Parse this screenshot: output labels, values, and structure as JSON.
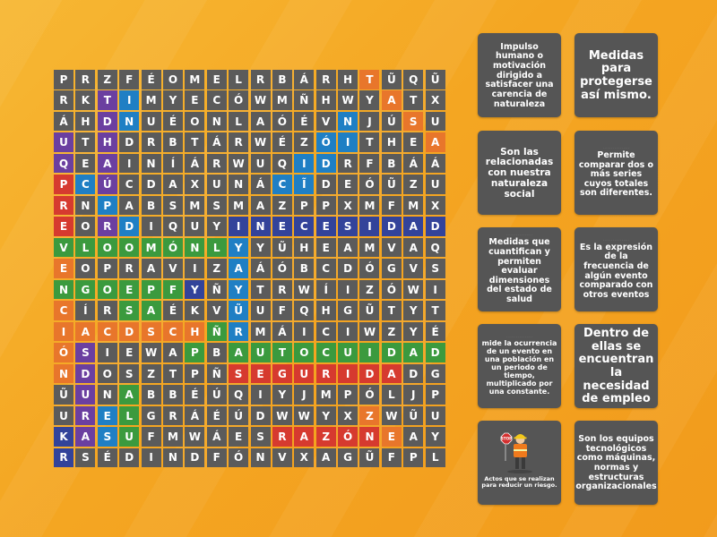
{
  "grid": [
    "PRZFÉOMELRBÁRHTŨQŨY",
    "RKTIMYECÓWMÑHWYATXF",
    "ÁHDNUÉONLAÓÉVNJÚSUM",
    "UTHDRBTÁRWÉZÓITHEAE",
    "QEAINÍÁRWUQIDRFBÁÁW",
    "PCÚCDAXUNÁCĨDEÓŨZUZ",
    "RNPABSMSMAZPPXMFMXÁ",
    "EORDIQUYINECESIDADA",
    "VLOOMÓNLYYŨHEAMVAQÉ",
    "EOPRAVIZAÁÓBCDÓGVSD",
    "NGOEPFYÑYTRWÍIZÓWIX",
    "CÍRSAÉKVŨUFQHGŨTYTR",
    "IACDSCHÑRMÁICIWZYÉT",
    "ÓSIEWAPBAUTOCUIDADO",
    "NDOSZTPÑSEGURIDADGÓ",
    "ŨUNABBÉÚQIYJMPÓLJPE",
    "URELGRÁÉÚDWWYXZWŨUŨ",
    "KASUFMWÁESRAZÓNEAYK",
    "RSÉDINDFÓNVXAGŨFPLÚ"
  ],
  "highlight_colors": {
    "orange": "#e8762b",
    "purple": "#6b3fa0",
    "blue": "#1f7fc4",
    "green": "#3b9a3e",
    "red": "#d63a2f",
    "navy": "#33439a"
  },
  "highlights": [
    {
      "color": "orange",
      "cells": [
        [
          0,
          14
        ],
        [
          1,
          15
        ],
        [
          2,
          16
        ],
        [
          3,
          17
        ]
      ]
    },
    {
      "color": "purple",
      "cells": [
        [
          1,
          2
        ],
        [
          2,
          2
        ],
        [
          3,
          2
        ],
        [
          4,
          2
        ],
        [
          5,
          2
        ],
        [
          6,
          2
        ],
        [
          7,
          2
        ]
      ]
    },
    {
      "color": "blue",
      "cells": [
        [
          1,
          3
        ],
        [
          2,
          3
        ]
      ]
    },
    {
      "color": "blue",
      "cells": [
        [
          2,
          13
        ],
        [
          3,
          12
        ],
        [
          4,
          11
        ],
        [
          5,
          10
        ]
      ]
    },
    {
      "color": "purple",
      "cells": [
        [
          3,
          0
        ],
        [
          4,
          0
        ],
        [
          5,
          0
        ],
        [
          6,
          0
        ],
        [
          7,
          0
        ],
        [
          8,
          0
        ],
        [
          9,
          0
        ],
        [
          10,
          0
        ],
        [
          11,
          0
        ]
      ]
    },
    {
      "color": "red",
      "cells": [
        [
          5,
          0
        ],
        [
          6,
          0
        ],
        [
          7,
          0
        ],
        [
          8,
          0
        ],
        [
          9,
          0
        ],
        [
          10,
          0
        ],
        [
          11,
          0
        ],
        [
          12,
          0
        ],
        [
          13,
          0
        ]
      ]
    },
    {
      "color": "orange",
      "cells": [
        [
          9,
          0
        ],
        [
          10,
          0
        ],
        [
          11,
          0
        ],
        [
          12,
          0
        ],
        [
          13,
          0
        ],
        [
          14,
          0
        ]
      ]
    },
    {
      "color": "blue",
      "cells": [
        [
          5,
          1
        ],
        [
          6,
          2
        ],
        [
          7,
          3
        ]
      ]
    },
    {
      "color": "navy",
      "cells": [
        [
          7,
          8
        ],
        [
          7,
          9
        ],
        [
          7,
          10
        ],
        [
          7,
          11
        ],
        [
          7,
          12
        ],
        [
          7,
          13
        ],
        [
          7,
          14
        ],
        [
          7,
          15
        ],
        [
          7,
          16
        ],
        [
          7,
          17
        ]
      ]
    },
    {
      "color": "green",
      "cells": [
        [
          8,
          0
        ],
        [
          8,
          1
        ],
        [
          8,
          2
        ],
        [
          8,
          3
        ],
        [
          8,
          4
        ],
        [
          8,
          5
        ],
        [
          8,
          6
        ],
        [
          8,
          7
        ]
      ]
    },
    {
      "color": "blue",
      "cells": [
        [
          8,
          8
        ],
        [
          9,
          8
        ],
        [
          10,
          8
        ],
        [
          11,
          8
        ],
        [
          12,
          8
        ]
      ]
    },
    {
      "color": "green",
      "cells": [
        [
          10,
          0
        ],
        [
          10,
          1
        ],
        [
          10,
          2
        ],
        [
          10,
          3
        ],
        [
          10,
          4
        ],
        [
          10,
          5
        ]
      ]
    },
    {
      "color": "navy",
      "cells": [
        [
          10,
          6
        ]
      ]
    },
    {
      "color": "green",
      "cells": [
        [
          11,
          3
        ],
        [
          11,
          4
        ]
      ]
    },
    {
      "color": "orange",
      "cells": [
        [
          12,
          0
        ],
        [
          12,
          1
        ],
        [
          12,
          2
        ],
        [
          12,
          3
        ],
        [
          12,
          4
        ],
        [
          12,
          5
        ],
        [
          12,
          6
        ],
        [
          12,
          7
        ]
      ]
    },
    {
      "color": "green",
      "cells": [
        [
          13,
          8
        ],
        [
          13,
          9
        ],
        [
          13,
          10
        ],
        [
          13,
          11
        ],
        [
          13,
          12
        ],
        [
          13,
          13
        ],
        [
          13,
          14
        ],
        [
          13,
          15
        ],
        [
          13,
          16
        ],
        [
          13,
          17
        ]
      ]
    },
    {
      "color": "red",
      "cells": [
        [
          14,
          8
        ],
        [
          14,
          9
        ],
        [
          14,
          10
        ],
        [
          14,
          11
        ],
        [
          14,
          12
        ],
        [
          14,
          13
        ],
        [
          14,
          14
        ],
        [
          14,
          15
        ]
      ]
    },
    {
      "color": "purple",
      "cells": [
        [
          13,
          1
        ],
        [
          14,
          1
        ],
        [
          15,
          1
        ],
        [
          16,
          1
        ],
        [
          17,
          1
        ]
      ]
    },
    {
      "color": "green",
      "cells": [
        [
          15,
          3
        ],
        [
          16,
          3
        ],
        [
          17,
          3
        ]
      ]
    },
    {
      "color": "navy",
      "cells": [
        [
          17,
          0
        ],
        [
          18,
          0
        ]
      ]
    },
    {
      "color": "blue",
      "cells": [
        [
          16,
          2
        ],
        [
          17,
          2
        ]
      ]
    },
    {
      "color": "red",
      "cells": [
        [
          17,
          10
        ],
        [
          17,
          11
        ],
        [
          17,
          12
        ],
        [
          17,
          13
        ],
        [
          17,
          14
        ]
      ]
    },
    {
      "color": "green",
      "cells": [
        [
          12,
          7
        ],
        [
          13,
          6
        ]
      ]
    },
    {
      "color": "blue",
      "cells": [
        [
          3,
          13
        ],
        [
          4,
          12
        ],
        [
          5,
          11
        ]
      ]
    },
    {
      "color": "orange",
      "cells": [
        [
          16,
          14
        ],
        [
          17,
          15
        ]
      ]
    }
  ],
  "cards": [
    {
      "text": "Impulso humano o motivación dirigido a satisfacer una carencia de naturaleza",
      "tiny": ""
    },
    {
      "text": "Medidas para protegerse así mismo.",
      "tiny": ""
    },
    {
      "text": "Son las relacionadas con nuestra naturaleza social",
      "tiny": ""
    },
    {
      "text": "Permite comparar dos o más series cuyos totales son diferentes.",
      "tiny": "· · · · · · · · · · · · · · · ·"
    },
    {
      "text": "Medidas que cuantifican y permiten evaluar dimensiones del estado de salud",
      "tiny": "· · · · · · · · · · · · · · · ·"
    },
    {
      "text": "Es la expresión de la frecuencia de algún evento comparado con otros eventos",
      "tiny": "· · · · · · · · · · · · · · · ·"
    },
    {
      "text": "mide la ocurrencia de un evento en una población en un periodo de tiempo, multiplicado por una constante.",
      "tiny": "· · · · · · · · · · · · · · · ·"
    },
    {
      "text": "Dentro de ellas se encuentran la necesidad de empleo",
      "tiny": ""
    },
    {
      "text": "Actos que se realizan para reducir un riesgo.",
      "tiny": "",
      "stop": "STOP"
    },
    {
      "text": "Son los equipos tecnológicos como máquinas, normas y estructuras organizacionales",
      "tiny": ""
    }
  ]
}
